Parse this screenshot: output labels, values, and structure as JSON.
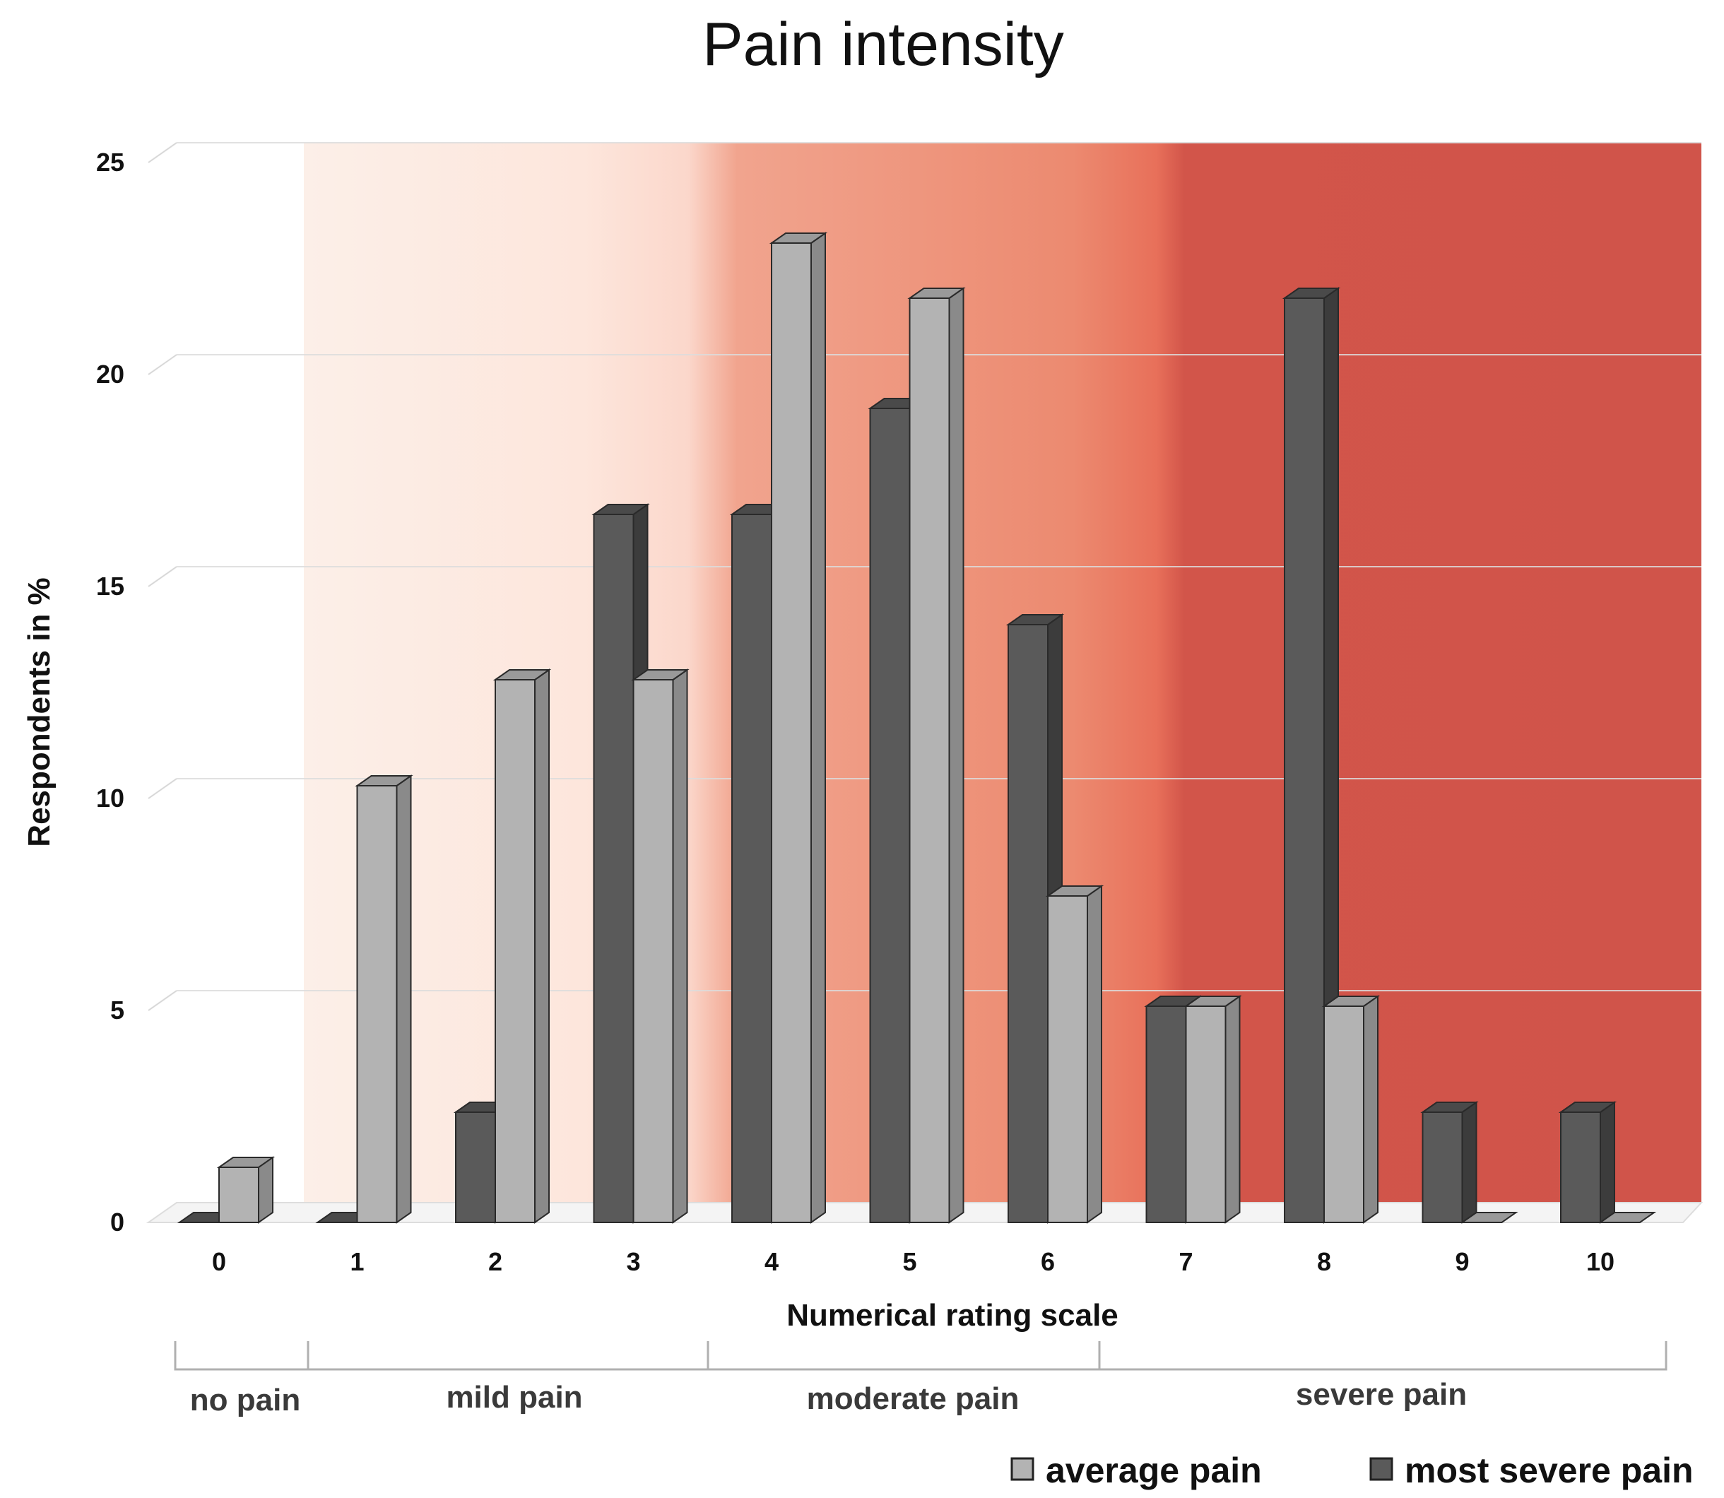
{
  "chart_data": {
    "type": "bar",
    "title": "Pain intensity",
    "xlabel": "Numerical rating scale",
    "ylabel": "Respondents in %",
    "categories": [
      "0",
      "1",
      "2",
      "3",
      "4",
      "5",
      "6",
      "7",
      "8",
      "9",
      "10"
    ],
    "yticks": [
      "0",
      "5",
      "10",
      "15",
      "20",
      "25"
    ],
    "ylim": [
      0,
      25
    ],
    "series": [
      {
        "name": "most severe pain",
        "color": "#5a5a5a",
        "values": [
          0,
          0,
          2.6,
          16.7,
          16.7,
          19.2,
          14.1,
          5.1,
          21.8,
          2.6,
          2.6
        ]
      },
      {
        "name": "average pain",
        "color": "#b3b3b3",
        "values": [
          1.3,
          10.3,
          12.8,
          12.8,
          23.1,
          21.8,
          7.7,
          5.1,
          5.1,
          0,
          0
        ]
      }
    ],
    "bands": [
      {
        "label": "no pain",
        "from": 0,
        "to": 0
      },
      {
        "label": "mild pain",
        "from": 1,
        "to": 3
      },
      {
        "label": "moderate pain",
        "from": 4,
        "to": 6
      },
      {
        "label": "severe pain",
        "from": 7,
        "to": 10
      }
    ],
    "legend": [
      {
        "label": "average pain",
        "color": "#b3b3b3"
      },
      {
        "label": "most severe pain",
        "color": "#5a5a5a"
      }
    ],
    "legend_position": "bottom-right"
  }
}
